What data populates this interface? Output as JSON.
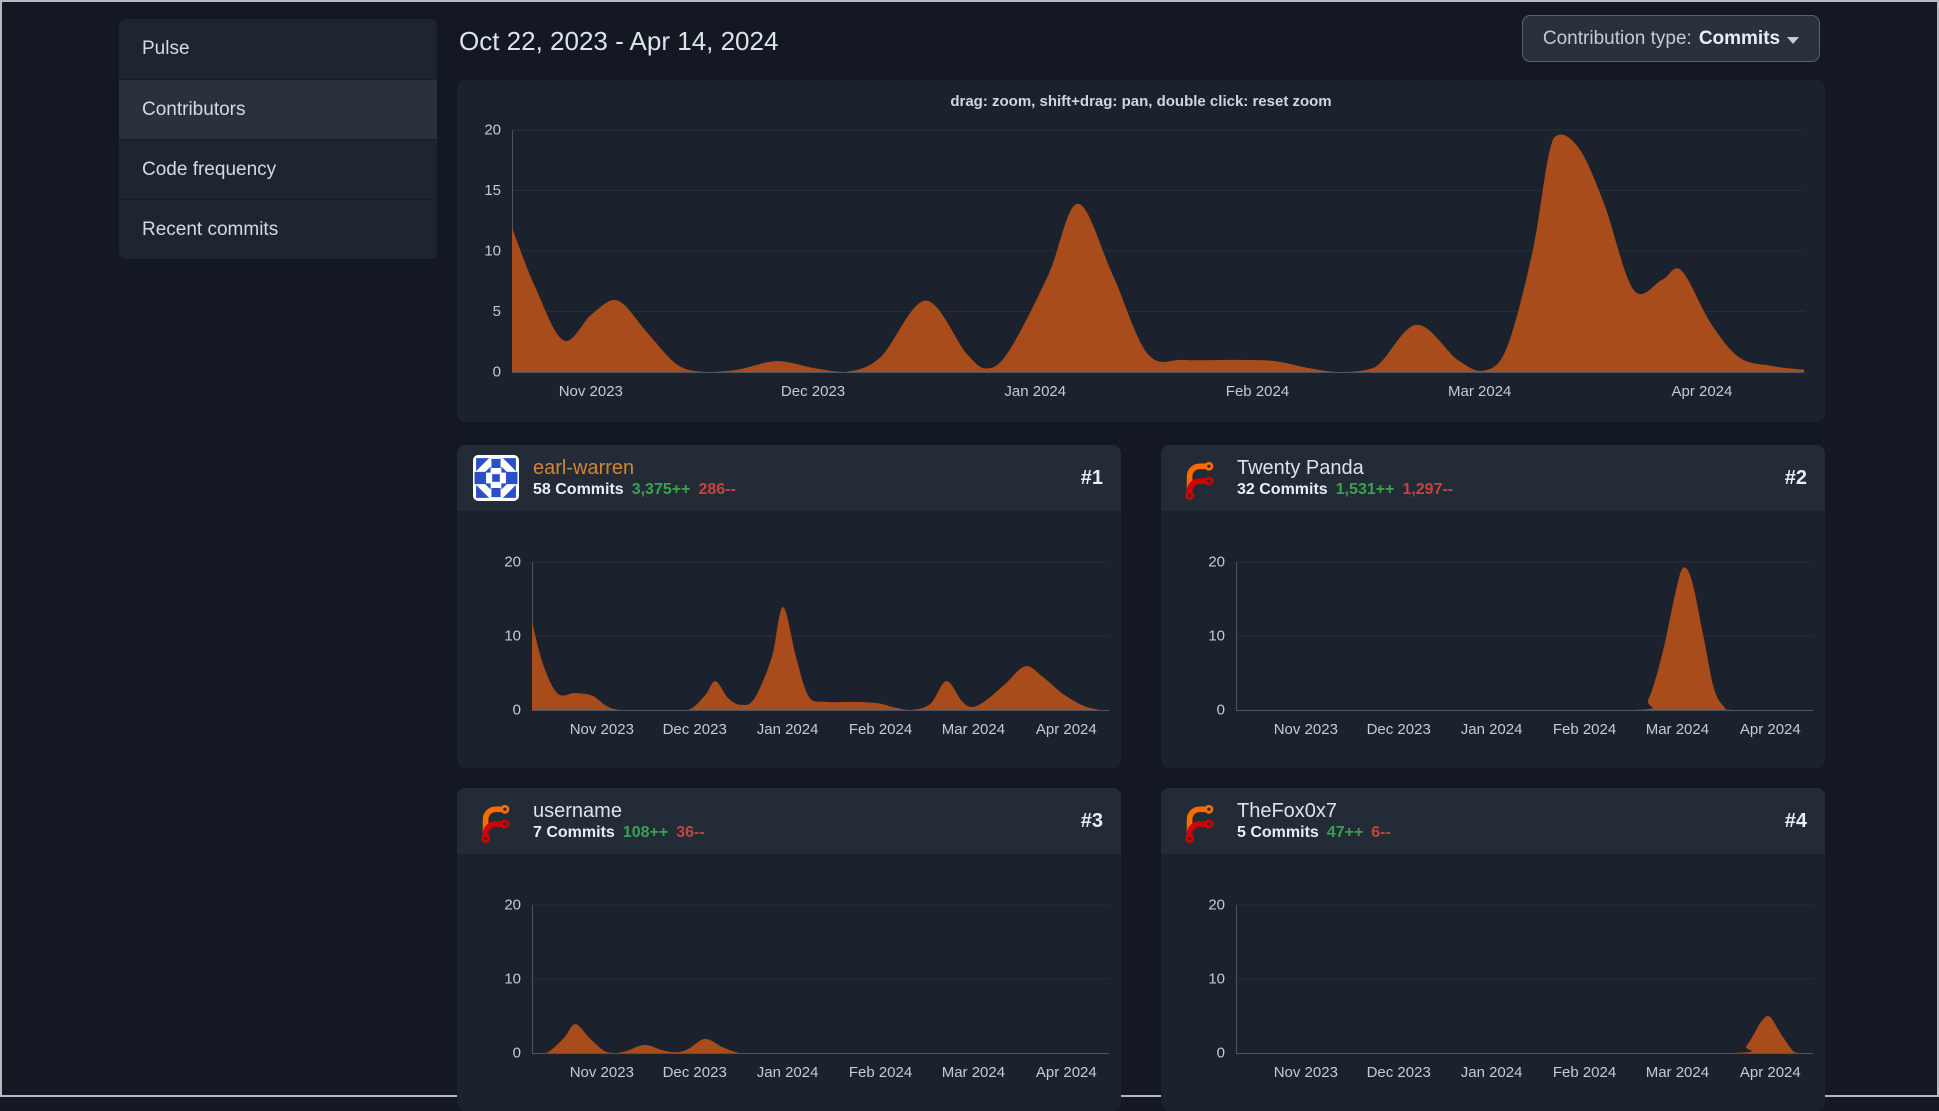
{
  "sidebar": {
    "items": [
      {
        "label": "Pulse",
        "selected": false
      },
      {
        "label": "Contributors",
        "selected": true
      },
      {
        "label": "Code frequency",
        "selected": false
      },
      {
        "label": "Recent commits",
        "selected": false
      }
    ]
  },
  "header": {
    "title": "Oct 22, 2023 - Apr 14, 2024",
    "dropdown": {
      "prefix": "Contribution type:",
      "value": "Commits"
    }
  },
  "main_chart_hint": "drag: zoom, shift+drag: pan, double click: reset zoom",
  "axis": {
    "months": [
      "Nov 2023",
      "Dec 2023",
      "Jan 2024",
      "Feb 2024",
      "Mar 2024",
      "Apr 2024"
    ],
    "main_yticks": [
      0,
      5,
      10,
      15,
      20
    ],
    "card_yticks": [
      0,
      10,
      20
    ]
  },
  "contributors": [
    {
      "rank": "#1",
      "name": "earl-warren",
      "commits": "58 Commits",
      "additions": "3,375++",
      "deletions": "286--",
      "avatar": "identicon-blue"
    },
    {
      "rank": "#2",
      "name": "Twenty Panda",
      "commits": "32 Commits",
      "additions": "1,531++",
      "deletions": "1,297--",
      "avatar": "forgejo-logo"
    },
    {
      "rank": "#3",
      "name": "username",
      "commits": "7 Commits",
      "additions": "108++",
      "deletions": "36--",
      "avatar": "forgejo-logo"
    },
    {
      "rank": "#4",
      "name": "TheFox0x7",
      "commits": "5 Commits",
      "additions": "47++",
      "deletions": "6--",
      "avatar": "forgejo-logo"
    }
  ],
  "colors": {
    "chart_fill": "#a84c1b",
    "additions_green": "#3aa24f",
    "deletions_red": "#c4453d",
    "link_orange": "#d08636",
    "identicon_blue": "#2b4ec9",
    "forgejo_orange": "#ff6a00",
    "forgejo_red": "#d40000",
    "grid": "#262e3a",
    "axis": "#4c5562",
    "tick_label": "#c3cbd4"
  },
  "chart_data": [
    {
      "type": "area",
      "title": "All contributions (commits per week)",
      "x_range": [
        "Oct 22, 2023",
        "Apr 14, 2024"
      ],
      "xlabel_ticks": [
        "Nov 2023",
        "Dec 2023",
        "Jan 2024",
        "Feb 2024",
        "Mar 2024",
        "Apr 2024"
      ],
      "ylim": [
        0,
        20
      ],
      "ytick_labels": [
        0,
        5,
        10,
        15,
        20
      ],
      "points": [
        [
          0,
          11.9
        ],
        [
          0.018,
          7
        ],
        [
          0.04,
          2.6
        ],
        [
          0.062,
          4.8
        ],
        [
          0.082,
          5.9
        ],
        [
          0.105,
          3.2
        ],
        [
          0.128,
          0.6
        ],
        [
          0.15,
          0
        ],
        [
          0.175,
          0.2
        ],
        [
          0.205,
          0.9
        ],
        [
          0.235,
          0.3
        ],
        [
          0.258,
          0
        ],
        [
          0.285,
          1.2
        ],
        [
          0.32,
          5.9
        ],
        [
          0.352,
          1.5
        ],
        [
          0.368,
          0.3
        ],
        [
          0.385,
          1.8
        ],
        [
          0.415,
          8
        ],
        [
          0.438,
          13.9
        ],
        [
          0.465,
          8
        ],
        [
          0.492,
          1.5
        ],
        [
          0.52,
          1
        ],
        [
          0.56,
          1
        ],
        [
          0.59,
          0.9
        ],
        [
          0.618,
          0.3
        ],
        [
          0.64,
          0
        ],
        [
          0.668,
          0.4
        ],
        [
          0.7,
          3.9
        ],
        [
          0.732,
          1
        ],
        [
          0.752,
          0.1
        ],
        [
          0.77,
          2
        ],
        [
          0.79,
          10
        ],
        [
          0.806,
          19.3
        ],
        [
          0.825,
          18.6
        ],
        [
          0.845,
          14
        ],
        [
          0.868,
          6.8
        ],
        [
          0.89,
          7.6
        ],
        [
          0.905,
          8.4
        ],
        [
          0.928,
          4
        ],
        [
          0.95,
          1.2
        ],
        [
          0.975,
          0.5
        ],
        [
          1,
          0.2
        ]
      ]
    },
    {
      "type": "area",
      "title": "earl-warren commits per week",
      "x_range": [
        "Oct 22, 2023",
        "Apr 14, 2024"
      ],
      "xlabel_ticks": [
        "Nov 2023",
        "Dec 2023",
        "Jan 2024",
        "Feb 2024",
        "Mar 2024",
        "Apr 2024"
      ],
      "ylim": [
        0,
        20
      ],
      "ytick_labels": [
        0,
        10,
        20
      ],
      "points": [
        [
          0,
          11.9
        ],
        [
          0.02,
          6
        ],
        [
          0.045,
          2.2
        ],
        [
          0.075,
          2.3
        ],
        [
          0.105,
          1.9
        ],
        [
          0.13,
          0.5
        ],
        [
          0.155,
          0
        ],
        [
          0.22,
          0
        ],
        [
          0.27,
          0
        ],
        [
          0.3,
          2
        ],
        [
          0.318,
          3.9
        ],
        [
          0.34,
          1.6
        ],
        [
          0.362,
          0.7
        ],
        [
          0.385,
          1.5
        ],
        [
          0.415,
          7
        ],
        [
          0.435,
          13.9
        ],
        [
          0.458,
          7
        ],
        [
          0.48,
          1.8
        ],
        [
          0.51,
          1.1
        ],
        [
          0.56,
          1.1
        ],
        [
          0.6,
          0.9
        ],
        [
          0.63,
          0.3
        ],
        [
          0.655,
          0
        ],
        [
          0.69,
          0.8
        ],
        [
          0.718,
          3.9
        ],
        [
          0.745,
          1.2
        ],
        [
          0.762,
          0.4
        ],
        [
          0.785,
          1.2
        ],
        [
          0.82,
          3.5
        ],
        [
          0.855,
          5.9
        ],
        [
          0.885,
          4.5
        ],
        [
          0.92,
          2.2
        ],
        [
          0.955,
          0.6
        ],
        [
          0.985,
          0
        ]
      ]
    },
    {
      "type": "area",
      "title": "Twenty Panda commits per week",
      "x_range": [
        "Oct 22, 2023",
        "Apr 14, 2024"
      ],
      "xlabel_ticks": [
        "Nov 2023",
        "Dec 2023",
        "Jan 2024",
        "Feb 2024",
        "Mar 2024",
        "Apr 2024"
      ],
      "ylim": [
        0,
        20
      ],
      "ytick_labels": [
        0,
        10,
        20
      ],
      "points": [
        [
          0,
          0
        ],
        [
          0.35,
          0
        ],
        [
          0.69,
          0
        ],
        [
          0.715,
          1.5
        ],
        [
          0.74,
          8
        ],
        [
          0.762,
          16
        ],
        [
          0.775,
          19.2
        ],
        [
          0.79,
          17.5
        ],
        [
          0.81,
          10
        ],
        [
          0.828,
          3
        ],
        [
          0.845,
          0.5
        ],
        [
          0.86,
          0
        ],
        [
          0.93,
          0
        ],
        [
          1,
          0
        ]
      ]
    },
    {
      "type": "area",
      "title": "username commits per week",
      "x_range": [
        "Oct 22, 2023",
        "Apr 14, 2024"
      ],
      "xlabel_ticks": [
        "Nov 2023",
        "Dec 2023",
        "Jan 2024",
        "Feb 2024",
        "Mar 2024",
        "Apr 2024"
      ],
      "ylim": [
        0,
        20
      ],
      "ytick_labels": [
        0,
        10,
        20
      ],
      "points": [
        [
          0,
          0
        ],
        [
          0.025,
          0
        ],
        [
          0.055,
          2
        ],
        [
          0.075,
          3.9
        ],
        [
          0.1,
          2
        ],
        [
          0.125,
          0.3
        ],
        [
          0.145,
          0
        ],
        [
          0.165,
          0.3
        ],
        [
          0.195,
          1.1
        ],
        [
          0.225,
          0.4
        ],
        [
          0.25,
          0.1
        ],
        [
          0.27,
          0.5
        ],
        [
          0.3,
          1.9
        ],
        [
          0.33,
          0.8
        ],
        [
          0.355,
          0.1
        ],
        [
          0.38,
          0
        ],
        [
          0.6,
          0
        ],
        [
          0.8,
          0
        ],
        [
          1,
          0
        ]
      ]
    },
    {
      "type": "area",
      "title": "TheFox0x7 commits per week",
      "x_range": [
        "Oct 22, 2023",
        "Apr 14, 2024"
      ],
      "xlabel_ticks": [
        "Nov 2023",
        "Dec 2023",
        "Jan 2024",
        "Feb 2024",
        "Mar 2024",
        "Apr 2024"
      ],
      "ylim": [
        0,
        20
      ],
      "ytick_labels": [
        0,
        10,
        20
      ],
      "points": [
        [
          0,
          0
        ],
        [
          0.5,
          0
        ],
        [
          0.86,
          0
        ],
        [
          0.885,
          1
        ],
        [
          0.91,
          4.2
        ],
        [
          0.925,
          4.9
        ],
        [
          0.945,
          2.5
        ],
        [
          0.965,
          0.3
        ],
        [
          0.975,
          0
        ],
        [
          1,
          0
        ]
      ]
    }
  ]
}
